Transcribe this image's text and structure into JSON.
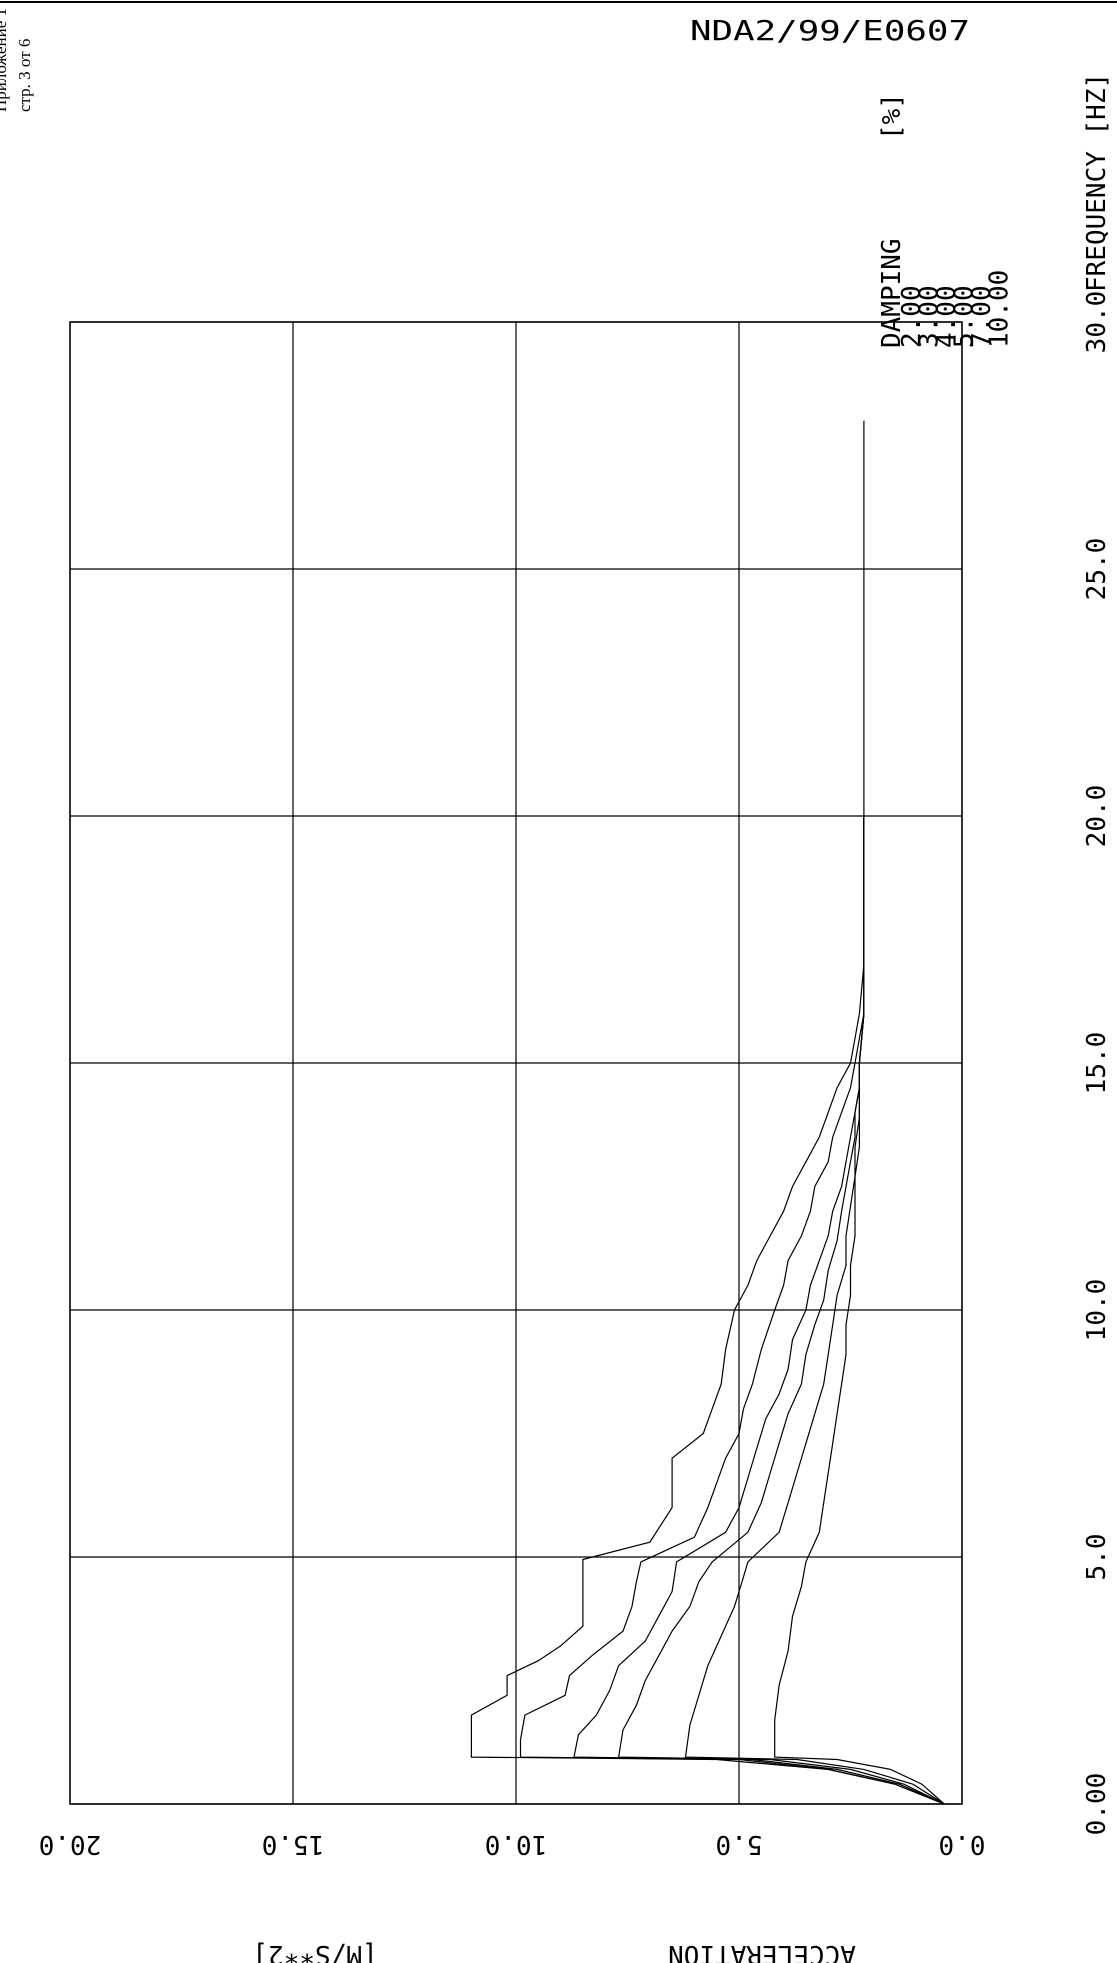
{
  "page": {
    "appendix_label": "Приложение 1",
    "page_label": "стр. 3 от 6",
    "document_id": "NDA2/99/E0607"
  },
  "chart_data": {
    "type": "line",
    "xlabel": "FREQUENCY [HZ]",
    "ylabel": "ACCELERATION",
    "yunit": "[M/S**2]",
    "xlim": [
      0,
      30
    ],
    "ylim": [
      0,
      20
    ],
    "x_ticks": [
      "0.00",
      "5.0",
      "10.0",
      "15.0",
      "20.0",
      "25.0",
      "30.0"
    ],
    "y_ticks": [
      "0.0",
      "5.0",
      "10.0",
      "15.0",
      "20.0"
    ],
    "grid": true,
    "legend": {
      "title": "DAMPING",
      "unit": "[%]",
      "entries": [
        "2.00",
        "3.00",
        "4.00",
        "5.00",
        "7.00",
        "10.00"
      ]
    },
    "series": [
      {
        "name": "2.00",
        "x": [
          0,
          0.4,
          0.7,
          0.9,
          0.95,
          1.2,
          1.5,
          1.8,
          2.2,
          2.6,
          2.9,
          3.2,
          3.6,
          4.0,
          4.4,
          4.8,
          4.95,
          5.3,
          6.0,
          6.5,
          7.0,
          7.5,
          8.0,
          8.5,
          9.2,
          10.0,
          10.5,
          11.0,
          11.5,
          12.0,
          12.5,
          13.0,
          13.5,
          14.0,
          14.5,
          15.0,
          15.5,
          16.0,
          17.0,
          20.0,
          28.0
        ],
        "y": [
          0.4,
          1.5,
          3.0,
          5.5,
          11.0,
          11.0,
          11.0,
          11.0,
          10.2,
          10.2,
          9.5,
          9.0,
          8.5,
          8.5,
          8.5,
          8.5,
          8.5,
          7.0,
          6.5,
          6.5,
          6.5,
          5.8,
          5.6,
          5.4,
          5.3,
          5.1,
          4.8,
          4.6,
          4.3,
          4.0,
          3.8,
          3.5,
          3.2,
          3.0,
          2.8,
          2.5,
          2.4,
          2.3,
          2.2,
          2.2,
          2.2
        ]
      },
      {
        "name": "3.00",
        "x": [
          0,
          0.4,
          0.7,
          0.9,
          0.95,
          1.3,
          1.8,
          2.2,
          2.6,
          3.0,
          3.5,
          4.0,
          4.5,
          4.9,
          5.4,
          6.0,
          6.5,
          7.0,
          7.5,
          8.0,
          8.5,
          9.2,
          10.0,
          10.5,
          11.0,
          11.5,
          12.0,
          12.5,
          13.0,
          13.5,
          14.0,
          14.5,
          15.0,
          15.5,
          16.0,
          17.0,
          20.0
        ],
        "y": [
          0.4,
          1.5,
          3.0,
          5.0,
          9.9,
          9.9,
          9.8,
          8.9,
          8.8,
          8.3,
          7.6,
          7.4,
          7.3,
          7.2,
          6.0,
          5.7,
          5.5,
          5.3,
          5.0,
          4.9,
          4.7,
          4.5,
          4.2,
          4.0,
          3.9,
          3.6,
          3.4,
          3.3,
          3.0,
          2.9,
          2.7,
          2.5,
          2.4,
          2.3,
          2.2,
          2.2,
          2.2
        ]
      },
      {
        "name": "4.00",
        "x": [
          0,
          0.4,
          0.7,
          0.9,
          0.95,
          1.4,
          1.8,
          2.3,
          2.8,
          3.3,
          3.8,
          4.3,
          4.9,
          5.5,
          6.0,
          6.6,
          7.2,
          7.8,
          8.3,
          8.8,
          9.4,
          10.0,
          10.5,
          11.0,
          11.5,
          12.0,
          12.5,
          13.0,
          13.5,
          14.0,
          14.5,
          15.0,
          16.0,
          17.0,
          20.0
        ],
        "y": [
          0.4,
          1.4,
          2.8,
          4.7,
          8.7,
          8.6,
          8.2,
          7.9,
          7.7,
          7.1,
          6.8,
          6.5,
          6.4,
          5.3,
          5.0,
          4.8,
          4.6,
          4.4,
          4.1,
          3.9,
          3.8,
          3.5,
          3.4,
          3.2,
          3.0,
          2.9,
          2.7,
          2.6,
          2.5,
          2.4,
          2.3,
          2.3,
          2.2,
          2.2,
          2.2
        ]
      },
      {
        "name": "5.00",
        "x": [
          0,
          0.4,
          0.7,
          0.9,
          0.95,
          1.5,
          2.0,
          2.5,
          3.0,
          3.5,
          4.0,
          4.5,
          4.9,
          5.5,
          6.1,
          6.7,
          7.3,
          7.9,
          8.5,
          9.1,
          9.7,
          10.2,
          10.8,
          11.4,
          12.0,
          12.5,
          13.0,
          13.5,
          14.0,
          14.5,
          15.0,
          16.0,
          17.0,
          20.0
        ],
        "y": [
          0.4,
          1.3,
          2.5,
          4.3,
          7.7,
          7.6,
          7.3,
          7.1,
          6.8,
          6.5,
          6.1,
          5.9,
          5.6,
          4.8,
          4.5,
          4.3,
          4.1,
          3.9,
          3.6,
          3.5,
          3.3,
          3.1,
          3.0,
          2.8,
          2.7,
          2.6,
          2.5,
          2.4,
          2.4,
          2.3,
          2.3,
          2.2,
          2.2,
          2.2
        ]
      },
      {
        "name": "7.00",
        "x": [
          0,
          0.4,
          0.7,
          0.9,
          0.95,
          1.6,
          2.2,
          2.8,
          3.4,
          4.0,
          4.6,
          4.9,
          5.5,
          6.1,
          6.7,
          7.3,
          7.9,
          8.5,
          9.1,
          9.7,
          10.3,
          10.9,
          11.5,
          12.1,
          12.7,
          13.3,
          13.9,
          14.5,
          15.0,
          16.0,
          17.0,
          20.0
        ],
        "y": [
          0.4,
          1.1,
          2.2,
          3.7,
          6.2,
          6.1,
          5.9,
          5.7,
          5.4,
          5.1,
          4.9,
          4.8,
          4.1,
          3.9,
          3.7,
          3.5,
          3.3,
          3.1,
          3.0,
          2.9,
          2.8,
          2.6,
          2.6,
          2.5,
          2.4,
          2.4,
          2.3,
          2.3,
          2.3,
          2.2,
          2.2,
          2.2
        ]
      },
      {
        "name": "10.00",
        "x": [
          0,
          0.4,
          0.7,
          0.9,
          0.95,
          1.7,
          2.4,
          3.1,
          3.8,
          4.4,
          4.9,
          5.5,
          6.1,
          6.7,
          7.3,
          7.9,
          8.5,
          9.1,
          9.7,
          10.3,
          10.9,
          11.5,
          12.1,
          12.7,
          13.3,
          13.9,
          14.5,
          15.0,
          16.0,
          17.0,
          20.0
        ],
        "y": [
          0.4,
          0.9,
          1.6,
          2.8,
          4.2,
          4.2,
          4.1,
          3.9,
          3.8,
          3.6,
          3.5,
          3.2,
          3.1,
          3.0,
          2.9,
          2.8,
          2.7,
          2.6,
          2.6,
          2.5,
          2.5,
          2.4,
          2.4,
          2.4,
          2.3,
          2.3,
          2.3,
          2.3,
          2.2,
          2.2,
          2.2
        ]
      }
    ]
  }
}
